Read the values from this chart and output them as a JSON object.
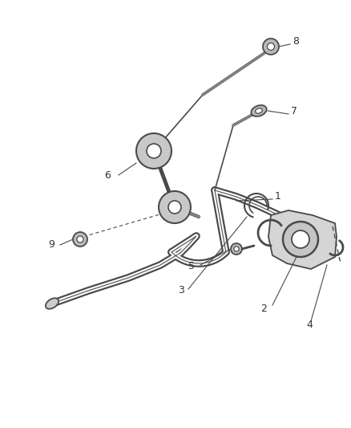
{
  "background_color": "#ffffff",
  "line_color": "#4a4a4a",
  "text_color": "#333333",
  "fig_width": 4.38,
  "fig_height": 5.33,
  "dpi": 100
}
